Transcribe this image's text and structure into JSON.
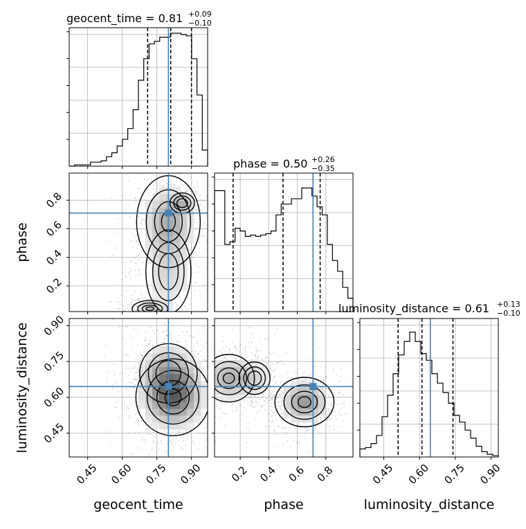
{
  "colors": {
    "truth": "#4682b4",
    "ink": "#000000",
    "grid": "#b0b0b0",
    "scatter": "#888888"
  },
  "chart_data": {
    "type": "corner",
    "parameters": [
      "geocent_time",
      "phase",
      "luminosity_distance"
    ],
    "truths": {
      "geocent_time": 0.8,
      "phase": 0.71,
      "luminosity_distance": 0.645
    },
    "ranges": {
      "geocent_time": [
        0.37,
        0.97
      ],
      "phase": [
        0.02,
        0.99
      ],
      "luminosity_distance": [
        0.35,
        0.93
      ]
    },
    "ticks": {
      "geocent_time": [
        "0.45",
        "0.60",
        "0.75",
        "0.90"
      ],
      "phase": [
        "0.2",
        "0.4",
        "0.6",
        "0.8"
      ],
      "luminosity_distance": [
        "0.45",
        "0.60",
        "0.75",
        "0.90"
      ]
    },
    "titles": {
      "geocent_time": {
        "text": "geocent_time = 0.81",
        "plus": "+0.09",
        "minus": "−0.10"
      },
      "phase": {
        "text": "phase = 0.50",
        "plus": "+0.26",
        "minus": "−0.35"
      },
      "luminosity_distance": {
        "text": "luminosity_distance = 0.61",
        "plus": "+0.13",
        "minus": "−0.10"
      }
    },
    "quantiles": {
      "geocent_time": [
        0.71,
        0.81,
        0.9
      ],
      "phase": [
        0.15,
        0.5,
        0.76
      ],
      "luminosity_distance": [
        0.51,
        0.61,
        0.74
      ]
    },
    "histograms": {
      "geocent_time": [
        0,
        0.01,
        0.01,
        0.01,
        0.03,
        0.03,
        0.04,
        0.07,
        0.1,
        0.15,
        0.2,
        0.28,
        0.42,
        0.64,
        0.8,
        0.91,
        0.93,
        0.96,
        0.96,
        0.99,
        0.99,
        0.98,
        0.97,
        0.8,
        0.53,
        0.12
      ],
      "phase": [
        0.9,
        0.9,
        0.5,
        0.52,
        0.62,
        0.6,
        0.56,
        0.57,
        0.56,
        0.57,
        0.58,
        0.6,
        0.72,
        0.8,
        0.8,
        0.84,
        0.84,
        0.92,
        0.92,
        0.86,
        0.78,
        0.72,
        0.5,
        0.38,
        0.3,
        0.18,
        0.1
      ],
      "luminosity_distance": [
        0.06,
        0.07,
        0.1,
        0.16,
        0.3,
        0.46,
        0.62,
        0.76,
        0.86,
        0.93,
        0.86,
        0.77,
        0.72,
        0.62,
        0.55,
        0.48,
        0.4,
        0.31,
        0.26,
        0.2,
        0.14,
        0.08,
        0.04,
        0.02,
        0.01
      ]
    },
    "pairs": [
      {
        "x": "geocent_time",
        "y": "phase",
        "blobs": [
          {
            "cx": 0.8,
            "cy": 0.65,
            "sx": 0.06,
            "sy": 0.14,
            "w": 1.0
          },
          {
            "cx": 0.86,
            "cy": 0.78,
            "sx": 0.03,
            "sy": 0.04,
            "w": 0.6
          },
          {
            "cx": 0.72,
            "cy": 0.04,
            "sx": 0.04,
            "sy": 0.03,
            "w": 0.7
          },
          {
            "cx": 0.8,
            "cy": 0.3,
            "sx": 0.06,
            "sy": 0.18,
            "w": 0.5
          }
        ]
      },
      {
        "x": "geocent_time",
        "y": "luminosity_distance",
        "blobs": [
          {
            "cx": 0.82,
            "cy": 0.6,
            "sx": 0.07,
            "sy": 0.07,
            "w": 1.0
          },
          {
            "cx": 0.8,
            "cy": 0.7,
            "sx": 0.07,
            "sy": 0.07,
            "w": 0.6
          }
        ]
      },
      {
        "x": "phase",
        "y": "luminosity_distance",
        "blobs": [
          {
            "cx": 0.65,
            "cy": 0.58,
            "sx": 0.09,
            "sy": 0.045,
            "w": 1.0
          },
          {
            "cx": 0.12,
            "cy": 0.68,
            "sx": 0.09,
            "sy": 0.05,
            "w": 0.75
          },
          {
            "cx": 0.3,
            "cy": 0.68,
            "sx": 0.08,
            "sy": 0.05,
            "w": 0.35
          }
        ]
      }
    ],
    "legend": "none",
    "grid": true
  }
}
